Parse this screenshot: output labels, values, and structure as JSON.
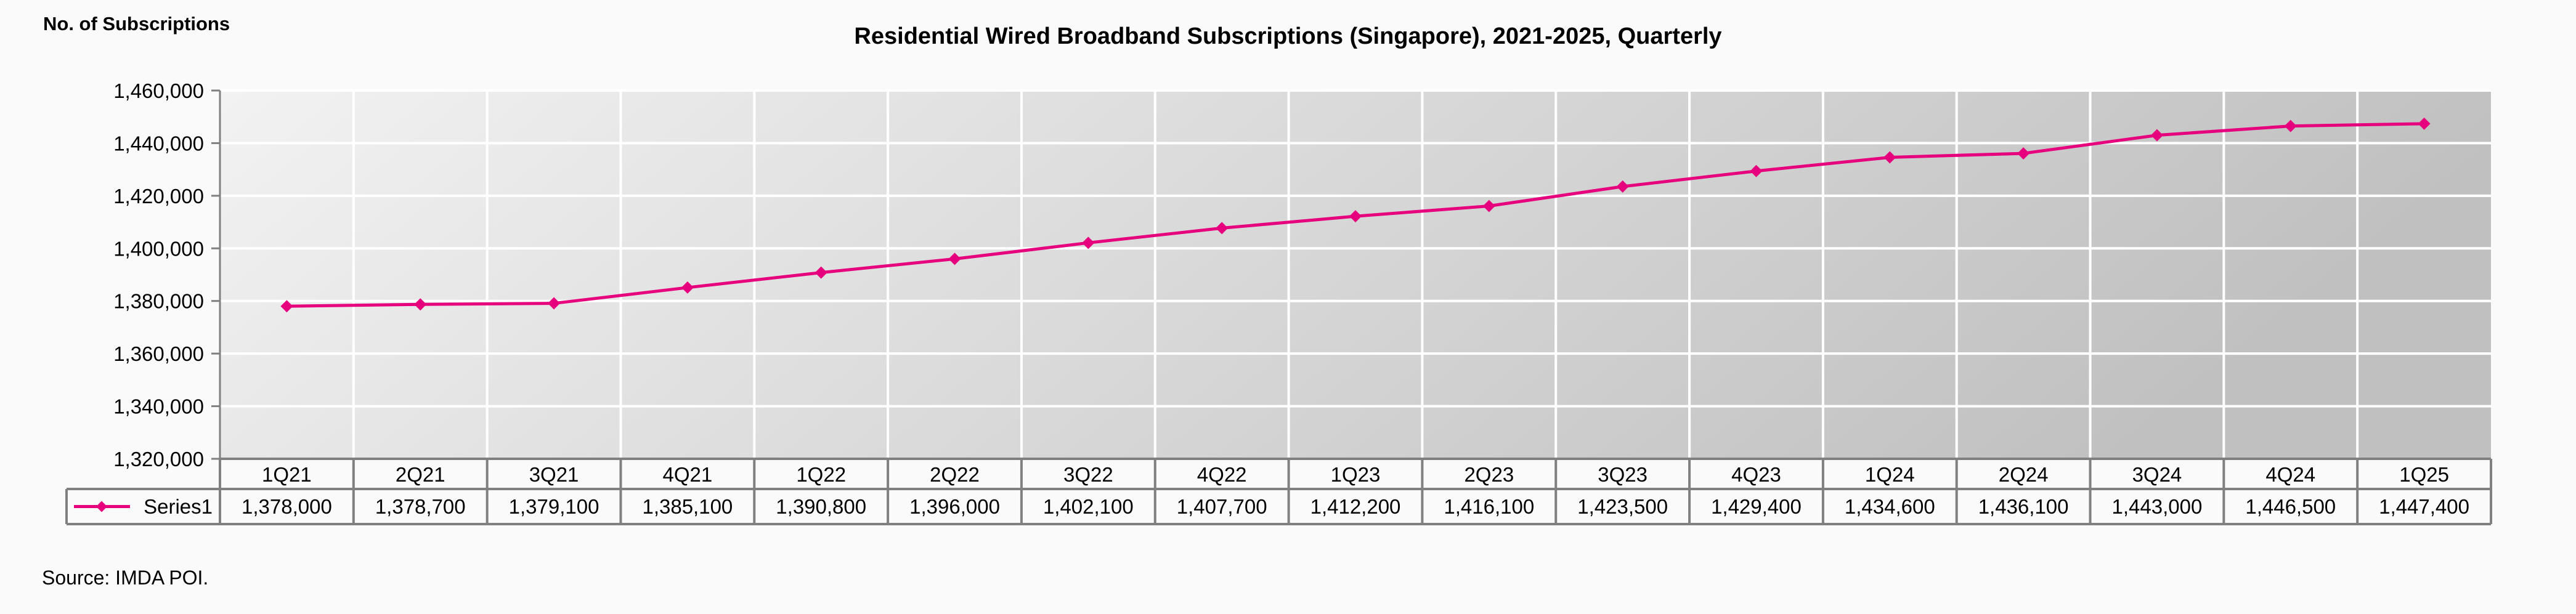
{
  "chart_data": {
    "type": "line",
    "title": "Residential Wired Broadband Subscriptions (Singapore), 2021-2025, Quarterly",
    "ylabel": "No. of Subscriptions",
    "xlabel": "",
    "ylim": [
      1320000,
      1460000
    ],
    "yticks": [
      "1,320,000",
      "1,340,000",
      "1,360,000",
      "1,380,000",
      "1,400,000",
      "1,420,000",
      "1,440,000",
      "1,460,000"
    ],
    "ytick_values": [
      1320000,
      1340000,
      1360000,
      1380000,
      1400000,
      1420000,
      1440000,
      1460000
    ],
    "grid": true,
    "legend": "data-table",
    "categories": [
      "1Q21",
      "2Q21",
      "3Q21",
      "4Q21",
      "1Q22",
      "2Q22",
      "3Q22",
      "4Q22",
      "1Q23",
      "2Q23",
      "3Q23",
      "4Q23",
      "1Q24",
      "2Q24",
      "3Q24",
      "4Q24",
      "1Q25"
    ],
    "series": [
      {
        "name": "Series1",
        "color": "#e6007e",
        "values": [
          1378000,
          1378700,
          1379100,
          1385100,
          1390800,
          1396000,
          1402100,
          1407700,
          1412200,
          1416100,
          1423500,
          1429400,
          1434600,
          1436100,
          1443000,
          1446500,
          1447400
        ],
        "labels": [
          "1,378,000",
          "1,378,700",
          "1,379,100",
          "1,385,100",
          "1,390,800",
          "1,396,000",
          "1,402,100",
          "1,407,700",
          "1,412,200",
          "1,416,100",
          "1,423,500",
          "1,429,400",
          "1,434,600",
          "1,436,100",
          "1,443,000",
          "1,446,500",
          "1,447,400"
        ]
      }
    ],
    "background_gradient": [
      "#f2f2f2",
      "#c0c0c0"
    ],
    "source": "Source: IMDA POI."
  }
}
